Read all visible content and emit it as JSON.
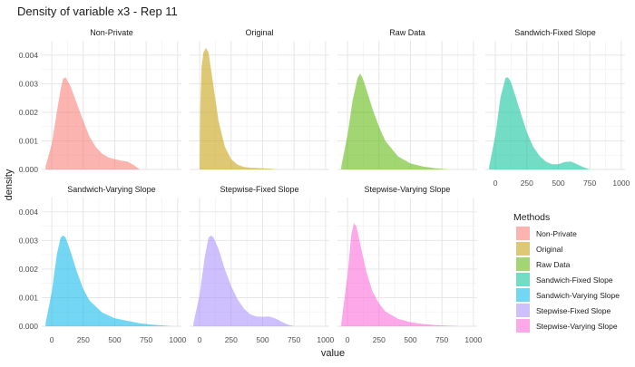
{
  "chart_data": {
    "type": "area",
    "title": "Density of variable x3 - Rep 11",
    "xlabel": "value",
    "ylabel": "density",
    "x_ticks": [
      0,
      250,
      500,
      750,
      1000
    ],
    "y_ticks": [
      0.0,
      0.001,
      0.002,
      0.003,
      0.004
    ],
    "y_tick_labels": [
      "0.000",
      "0.001",
      "0.002",
      "0.003",
      "0.004"
    ],
    "xlim": [
      -80,
      1030
    ],
    "ylim": [
      0,
      0.0045
    ],
    "grid": true,
    "legend_title": "Methods",
    "legend_position": "right",
    "series": [
      {
        "name": "Non-Private",
        "color": "#F8766D",
        "x": [
          -50,
          0,
          40,
          70,
          90,
          110,
          150,
          200,
          250,
          300,
          350,
          400,
          450,
          500,
          550,
          600,
          650,
          680,
          700
        ],
        "y": [
          0.0001,
          0.0009,
          0.002,
          0.0028,
          0.00318,
          0.00322,
          0.0029,
          0.0023,
          0.0017,
          0.00115,
          0.00078,
          0.00055,
          0.00042,
          0.00036,
          0.00031,
          0.00028,
          0.00016,
          6e-05,
          0.0
        ]
      },
      {
        "name": "Original",
        "color": "#C49A00",
        "x": [
          0,
          5,
          15,
          30,
          50,
          70,
          100,
          150,
          200,
          250,
          300,
          350,
          400,
          450,
          550,
          620
        ],
        "y": [
          0.0,
          0.0022,
          0.0036,
          0.0041,
          0.00425,
          0.0041,
          0.0032,
          0.0017,
          0.0008,
          0.00036,
          0.00017,
          9e-05,
          6e-05,
          5e-05,
          3e-05,
          0.0
        ]
      },
      {
        "name": "Raw Data",
        "color": "#53B400",
        "x": [
          -50,
          0,
          40,
          80,
          100,
          120,
          150,
          200,
          250,
          300,
          400,
          500,
          600,
          700,
          800
        ],
        "y": [
          0.0001,
          0.0012,
          0.0024,
          0.0032,
          0.00335,
          0.0032,
          0.0028,
          0.0021,
          0.0015,
          0.001,
          0.00046,
          0.00021,
          0.0001,
          4e-05,
          0.0
        ]
      },
      {
        "name": "Sandwich-Fixed Slope",
        "color": "#00C094",
        "x": [
          -50,
          0,
          40,
          80,
          100,
          120,
          150,
          200,
          250,
          300,
          350,
          400,
          450,
          500,
          550,
          600,
          650,
          700,
          750
        ],
        "y": [
          0.0001,
          0.0012,
          0.0025,
          0.0032,
          0.00322,
          0.0031,
          0.0027,
          0.002,
          0.0013,
          0.0008,
          0.00048,
          0.00028,
          0.00018,
          0.00018,
          0.00026,
          0.00028,
          0.00018,
          8e-05,
          0.0
        ]
      },
      {
        "name": "Sandwich-Varying Slope",
        "color": "#00B6EB",
        "x": [
          -50,
          0,
          40,
          70,
          90,
          110,
          150,
          200,
          250,
          300,
          400,
          500,
          600,
          700,
          800,
          900,
          950
        ],
        "y": [
          0.0001,
          0.0012,
          0.0025,
          0.0031,
          0.00318,
          0.0031,
          0.0026,
          0.0019,
          0.0013,
          0.0009,
          0.00048,
          0.00028,
          0.00019,
          0.0001,
          5e-05,
          2e-05,
          0.0
        ]
      },
      {
        "name": "Stepwise-Fixed Slope",
        "color": "#A58AFF",
        "x": [
          -50,
          0,
          40,
          70,
          90,
          110,
          150,
          200,
          250,
          300,
          350,
          400,
          450,
          500,
          550,
          600,
          650,
          700,
          750
        ],
        "y": [
          0.0001,
          0.0011,
          0.0024,
          0.0031,
          0.00318,
          0.0031,
          0.0027,
          0.002,
          0.0014,
          0.00095,
          0.00062,
          0.00042,
          0.00034,
          0.00033,
          0.00034,
          0.00028,
          0.00016,
          6e-05,
          0.0
        ]
      },
      {
        "name": "Stepwise-Varying Slope",
        "color": "#FB61D7",
        "x": [
          -50,
          0,
          30,
          50,
          70,
          90,
          120,
          150,
          200,
          250,
          300,
          400,
          500,
          600,
          700,
          800,
          900
        ],
        "y": [
          0.0001,
          0.0018,
          0.0032,
          0.0036,
          0.0035,
          0.0031,
          0.0025,
          0.0019,
          0.0012,
          0.0008,
          0.00052,
          0.00026,
          0.00014,
          8e-05,
          4e-05,
          2e-05,
          0.0
        ]
      }
    ]
  }
}
